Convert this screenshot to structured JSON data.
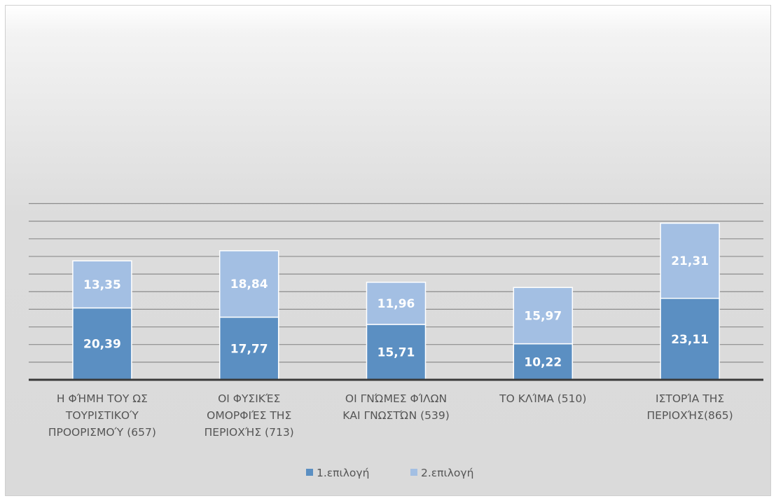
{
  "chart_data": {
    "type": "bar",
    "stacked": true,
    "categories": [
      [
        "Η ΦΉΜΗ ΤΟΥ ΩΣ",
        "ΤΟΥΡΙΣΤΙΚΟΎ",
        "ΠΡΟΟΡΙΣΜΟΎ (657)"
      ],
      [
        "ΟΙ ΦΥΣΙΚΈΣ",
        "ΟΜΟΡΦΙΈΣ ΤΗΣ",
        "ΠΕΡΙΟΧΉΣ (713)"
      ],
      [
        "ΟΙ ΓΝΏΜΕΣ ΦΊΛΩΝ",
        "ΚΑΙ ΓΝΩΣΤΏΝ (539)"
      ],
      [
        "ΤΟ ΚΛΊΜΑ (510)"
      ],
      [
        "ΙΣΤΟΡΊΑ ΤΗΣ",
        "ΠΕΡΙΟΧΉΣ(865)"
      ]
    ],
    "series": [
      {
        "name": "1.επιλογή",
        "color": "#5b8fc2",
        "values": [
          20.39,
          17.77,
          15.71,
          10.22,
          23.11
        ],
        "labels": [
          "20,39",
          "17,77",
          "15,71",
          "10,22",
          "23,11"
        ]
      },
      {
        "name": "2.επιλογή",
        "color": "#a3bfe3",
        "values": [
          13.35,
          18.84,
          11.96,
          15.97,
          21.31
        ],
        "labels": [
          "13,35",
          "18,84",
          "11,96",
          "15,97",
          "21,31"
        ]
      }
    ],
    "ylim": [
      0,
      50
    ],
    "ytick_step": 5,
    "grid": true,
    "legend_position": "bottom",
    "axis_labels_shown": false
  }
}
